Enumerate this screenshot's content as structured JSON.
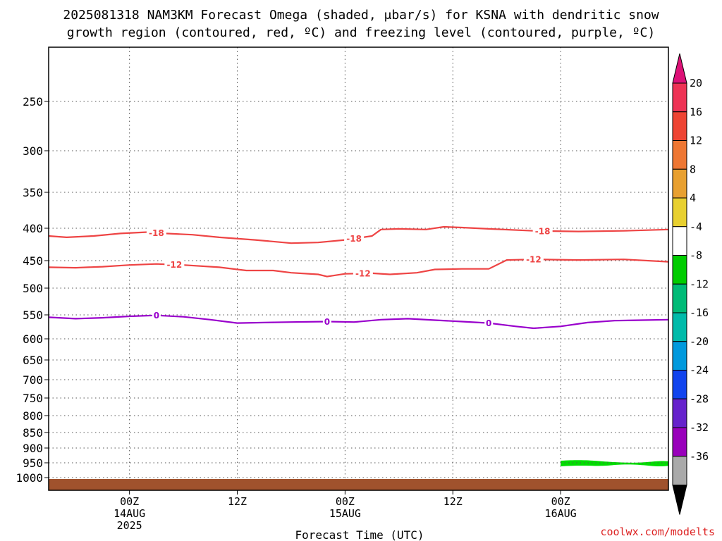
{
  "title": {
    "line1": "2025081318 NAM3KM Forecast Omega (shaded, μbar/s) for KSNA with dendritic snow",
    "line2": "growth region (contoured, red, ºC) and freezing level (contoured, purple, ºC)"
  },
  "credit": "coolwx.com/modelts",
  "chart_data": {
    "type": "time-height",
    "xlabel": "Forecast Time (UTC)",
    "x_range_hours": [
      -9,
      60
    ],
    "x_ticks": [
      {
        "hour": 0,
        "lines": [
          "00Z",
          "14AUG",
          "2025"
        ]
      },
      {
        "hour": 12,
        "lines": [
          "12Z"
        ]
      },
      {
        "hour": 24,
        "lines": [
          "00Z",
          "15AUG"
        ]
      },
      {
        "hour": 36,
        "lines": [
          "12Z"
        ]
      },
      {
        "hour": 48,
        "lines": [
          "00Z",
          "16AUG"
        ]
      }
    ],
    "y_ticks_hpa": [
      250,
      300,
      350,
      400,
      450,
      500,
      550,
      600,
      650,
      700,
      750,
      800,
      850,
      900,
      950,
      1000
    ],
    "grid": true,
    "surface_band_color": "#a0522d",
    "contours": [
      {
        "value": -18,
        "label": "-18",
        "color": "#ee4444",
        "points": [
          [
            -9,
            412
          ],
          [
            -7,
            414
          ],
          [
            -4,
            412
          ],
          [
            -1,
            408
          ],
          [
            2,
            406
          ],
          [
            4,
            408
          ],
          [
            7,
            410
          ],
          [
            10,
            414
          ],
          [
            14,
            418
          ],
          [
            18,
            423
          ],
          [
            21,
            422
          ],
          [
            24,
            418
          ],
          [
            27,
            412
          ],
          [
            28,
            402
          ],
          [
            30,
            401
          ],
          [
            33,
            402
          ],
          [
            35,
            398
          ],
          [
            37,
            399
          ],
          [
            40,
            401
          ],
          [
            45,
            404
          ],
          [
            50,
            405
          ],
          [
            55,
            404
          ],
          [
            60,
            402
          ]
        ],
        "label_positions": [
          3,
          25,
          46
        ]
      },
      {
        "value": -12,
        "label": "-12",
        "color": "#ee4444",
        "points": [
          [
            -9,
            462
          ],
          [
            -6,
            463
          ],
          [
            -3,
            461
          ],
          [
            0,
            458
          ],
          [
            3,
            456
          ],
          [
            6,
            458
          ],
          [
            10,
            462
          ],
          [
            13,
            468
          ],
          [
            16,
            468
          ],
          [
            18,
            472
          ],
          [
            21,
            475
          ],
          [
            22,
            479
          ],
          [
            24,
            474
          ],
          [
            27,
            473
          ],
          [
            29,
            475
          ],
          [
            32,
            472
          ],
          [
            34,
            466
          ],
          [
            37,
            465
          ],
          [
            40,
            465
          ],
          [
            42,
            449
          ],
          [
            45,
            448
          ],
          [
            50,
            449
          ],
          [
            55,
            448
          ],
          [
            60,
            452
          ]
        ],
        "label_positions": [
          5,
          26,
          45
        ]
      },
      {
        "value": 0,
        "label": "0",
        "color": "#9900cc",
        "points": [
          [
            -9,
            555
          ],
          [
            -6,
            558
          ],
          [
            -3,
            556
          ],
          [
            0,
            553
          ],
          [
            3,
            551
          ],
          [
            6,
            554
          ],
          [
            9,
            560
          ],
          [
            12,
            567
          ],
          [
            15,
            566
          ],
          [
            18,
            565
          ],
          [
            22,
            564
          ],
          [
            25,
            565
          ],
          [
            28,
            560
          ],
          [
            31,
            558
          ],
          [
            34,
            561
          ],
          [
            37,
            564
          ],
          [
            40,
            567
          ],
          [
            43,
            574
          ],
          [
            45,
            578
          ],
          [
            48,
            574
          ],
          [
            51,
            566
          ],
          [
            54,
            562
          ],
          [
            57,
            561
          ],
          [
            60,
            560
          ]
        ],
        "label_positions": [
          3,
          22,
          40
        ]
      }
    ],
    "shaded_regions": [
      {
        "level": "-8 to -4",
        "color": "#00dd00",
        "hours": [
          48,
          61
        ],
        "hpa_top": 945,
        "hpa_bottom": 960
      }
    ],
    "colorbar": {
      "ticks": [
        "20",
        "16",
        "12",
        "8",
        "4",
        "-4",
        "-8",
        "-12",
        "-16",
        "-20",
        "-24",
        "-28",
        "-32",
        "-36"
      ],
      "colors": [
        "#ee3355",
        "#ee4433",
        "#ee7733",
        "#e8a030",
        "#e8d030",
        "#ffffff",
        "#00cc00",
        "#00bb77",
        "#00bbaa",
        "#0099dd",
        "#1144ee",
        "#6622cc",
        "#9900bb",
        "#aaaaaa"
      ],
      "top_arrow_color": "#dd1177",
      "bottom_arrow_color": "#000000"
    }
  }
}
